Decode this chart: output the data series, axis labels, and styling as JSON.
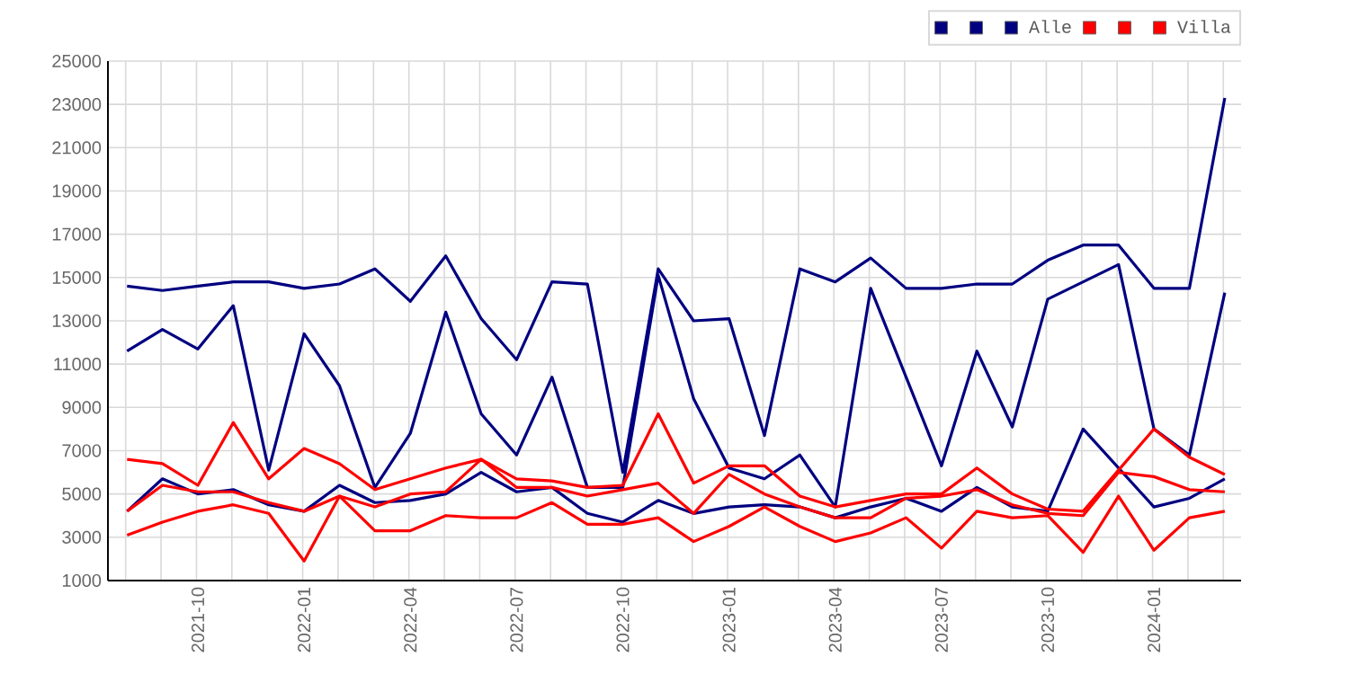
{
  "chart_data": {
    "type": "line",
    "x": [
      "2021-08",
      "2021-09",
      "2021-10",
      "2021-11",
      "2021-12",
      "2022-01",
      "2022-02",
      "2022-03",
      "2022-04",
      "2022-05",
      "2022-06",
      "2022-07",
      "2022-08",
      "2022-09",
      "2022-10",
      "2022-11",
      "2022-12",
      "2023-01",
      "2023-02",
      "2023-03",
      "2023-04",
      "2023-05",
      "2023-06",
      "2023-07",
      "2023-08",
      "2023-09",
      "2023-10",
      "2023-11",
      "2023-12",
      "2024-01",
      "2024-02",
      "2024-03"
    ],
    "series": [
      {
        "color": "#000080",
        "values": [
          14600,
          14400,
          14600,
          14800,
          14800,
          14500,
          14700,
          15400,
          13900,
          16000,
          13100,
          11200,
          14800,
          14700,
          6000,
          15400,
          13000,
          13100,
          7700,
          15400,
          14800,
          15900,
          14500,
          14500,
          14700,
          14700,
          15800,
          16500,
          16500,
          14500,
          14500,
          23300
        ]
      },
      {
        "color": "#000080",
        "values": [
          11600,
          12600,
          11700,
          13700,
          6100,
          12400,
          10000,
          5300,
          7800,
          13400,
          8700,
          6800,
          10400,
          5300,
          5300,
          15100,
          9400,
          6200,
          5700,
          6800,
          4400,
          14500,
          10400,
          6300,
          11600,
          8100,
          14000,
          14800,
          15600,
          8000,
          6800,
          14300
        ]
      },
      {
        "name": "Alle",
        "color": "#000080",
        "values": [
          4200,
          5700,
          5000,
          5200,
          4500,
          4200,
          5400,
          4600,
          4700,
          5000,
          6000,
          5100,
          5300,
          4100,
          3700,
          4700,
          4100,
          4400,
          4500,
          4400,
          3900,
          4400,
          4800,
          4200,
          5300,
          4400,
          4200,
          8000,
          6200,
          4400,
          4800,
          5700
        ]
      },
      {
        "color": "#ff0000",
        "values": [
          6600,
          6400,
          5400,
          8300,
          5700,
          7100,
          6400,
          5200,
          5700,
          6200,
          6600,
          5700,
          5600,
          5300,
          5400,
          8700,
          5500,
          6300,
          6300,
          4900,
          4400,
          4700,
          5000,
          5000,
          6200,
          5000,
          4300,
          4200,
          6100,
          8000,
          6700,
          5900
        ]
      },
      {
        "color": "#ff0000",
        "values": [
          4200,
          5400,
          5100,
          5100,
          4600,
          4200,
          4900,
          4400,
          5000,
          5100,
          6600,
          5300,
          5300,
          4900,
          5200,
          5500,
          4100,
          5900,
          5000,
          4400,
          3900,
          3900,
          4800,
          4900,
          5200,
          4500,
          4100,
          4000,
          6000,
          5800,
          5200,
          5100
        ]
      },
      {
        "name": "Villa",
        "color": "#ff0000",
        "values": [
          3100,
          3700,
          4200,
          4500,
          4100,
          1900,
          4900,
          3300,
          3300,
          4000,
          3900,
          3900,
          4600,
          3600,
          3600,
          3900,
          2800,
          3500,
          4400,
          3500,
          2800,
          3200,
          3900,
          2500,
          4200,
          3900,
          4000,
          2300,
          4900,
          2400,
          3900,
          4200
        ]
      }
    ],
    "xlim": [
      "2021-07-15",
      "2024-03-15"
    ],
    "xticks": [
      "2021-10",
      "2022-01",
      "2022-04",
      "2022-07",
      "2022-10",
      "2023-01",
      "2023-04",
      "2023-07",
      "2023-10",
      "2024-01"
    ],
    "ylim": [
      1000,
      25000
    ],
    "yticks": [
      1000,
      3000,
      5000,
      7000,
      9000,
      11000,
      13000,
      15000,
      17000,
      19000,
      21000,
      23000,
      25000
    ],
    "grid": true,
    "legend": "top right",
    "marker": "none",
    "line_style": "solid"
  }
}
